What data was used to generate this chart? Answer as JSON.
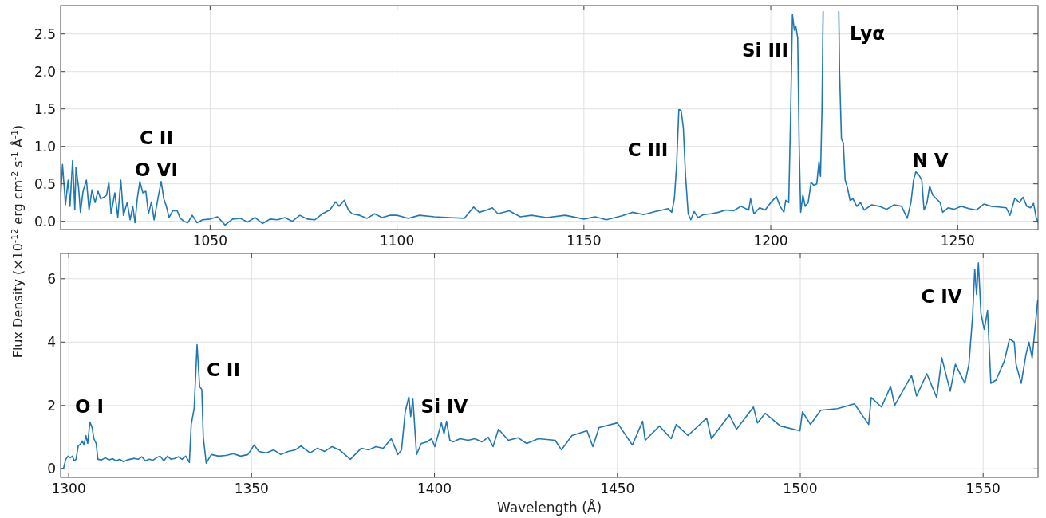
{
  "chart_data": [
    {
      "type": "line",
      "ylabel": "Flux Density (×10$^{-12}$ erg cm$^{-2}$ s$^{-1}$ Å$^{-1}$)",
      "grid": true,
      "xlim": [
        1010,
        1271.5
      ],
      "ylim": [
        -0.11,
        2.88
      ],
      "xticks": [
        1050,
        1100,
        1150,
        1200,
        1250
      ],
      "yticks": [
        {
          "value": 0,
          "label": "0.0"
        },
        {
          "value": 0.5,
          "label": "0.5"
        },
        {
          "value": 1,
          "label": "1.0"
        },
        {
          "value": 1.5,
          "label": "1.5"
        },
        {
          "value": 2,
          "label": "2.0"
        },
        {
          "value": 2.5,
          "label": "2.5"
        }
      ],
      "series": [
        {
          "color": "#1f77b4",
          "x": [
            1010,
            1010.5,
            1011.3,
            1012,
            1012.5,
            1013.2,
            1013.8,
            1014.1,
            1014.8,
            1015.3,
            1016,
            1016.9,
            1017.6,
            1018.4,
            1019.2,
            1020,
            1020.7,
            1021.5,
            1022.3,
            1022.9,
            1023.5,
            1024.5,
            1025.3,
            1026.1,
            1026.8,
            1027.8,
            1028.6,
            1029.3,
            1029.9,
            1030.5,
            1031.2,
            1032,
            1032.8,
            1033.5,
            1034.3,
            1035,
            1036.2,
            1036.9,
            1037.6,
            1038.3,
            1039,
            1040,
            1041.2,
            1042,
            1043,
            1044,
            1045.2,
            1046.5,
            1048,
            1050,
            1052,
            1054,
            1056,
            1058,
            1060,
            1062,
            1064,
            1066,
            1068,
            1070,
            1072,
            1074,
            1076,
            1078,
            1080,
            1082,
            1083.6,
            1084.5,
            1085.9,
            1087,
            1088,
            1090,
            1092,
            1094,
            1096,
            1098,
            1100,
            1103,
            1106,
            1110,
            1114,
            1118,
            1120.5,
            1122,
            1124,
            1125.5,
            1127,
            1130,
            1133,
            1136,
            1140,
            1145,
            1150,
            1153,
            1156,
            1160,
            1163,
            1166,
            1169,
            1171,
            1172.5,
            1173.5,
            1174.2,
            1174.8,
            1175.4,
            1176,
            1176.6,
            1177.2,
            1177.9,
            1178.6,
            1179.5,
            1180.5,
            1182,
            1184,
            1186,
            1188,
            1190,
            1192,
            1194.1,
            1194.6,
            1195.5,
            1197,
            1198.5,
            1200,
            1201.5,
            1202.5,
            1203.5,
            1204,
            1204.8,
            1205.3,
            1205.8,
            1206.3,
            1206.7,
            1207.2,
            1207.6,
            1208,
            1208.6,
            1209.2,
            1210,
            1210.8,
            1211.5,
            1212.3,
            1212.9,
            1213.3,
            1213.7,
            1214
          ],
          "values": [
            0.33,
            0.76,
            0.22,
            0.55,
            0.2,
            0.81,
            0.15,
            0.72,
            0.45,
            0.12,
            0.4,
            0.55,
            0.15,
            0.42,
            0.25,
            0.4,
            0.3,
            0.32,
            0.35,
            0.52,
            0.1,
            0.38,
            0.05,
            0.55,
            0.08,
            0.25,
            0.02,
            0.2,
            -0.02,
            0.3,
            0.53,
            0.38,
            0.4,
            0.1,
            0.26,
            0.02,
            0.35,
            0.53,
            0.3,
            0.2,
            0.05,
            0.14,
            0.14,
            0.04,
            0,
            -0.02,
            0.08,
            -0.02,
            0.02,
            0.03,
            0.06,
            -0.05,
            0.03,
            0.04,
            -0.01,
            0.05,
            -0.03,
            0.03,
            0.02,
            0.05,
            0,
            0.08,
            0.03,
            0.02,
            0.1,
            0.15,
            0.26,
            0.2,
            0.28,
            0.15,
            0.1,
            0.08,
            0.04,
            0.1,
            0.05,
            0.08,
            0.08,
            0.04,
            0.08,
            0.06,
            0.05,
            0.04,
            0.19,
            0.12,
            0.15,
            0.18,
            0.1,
            0.14,
            0.06,
            0.08,
            0.05,
            0.08,
            0.03,
            0.06,
            0.02,
            0.07,
            0.12,
            0.09,
            0.13,
            0.15,
            0.17,
            0.12,
            0.3,
            0.75,
            1.49,
            1.48,
            1.25,
            0.6,
            0.1,
            0.02,
            0.13,
            0.05,
            0.09,
            0.1,
            0.12,
            0.15,
            0.14,
            0.2,
            0.15,
            0.3,
            0.1,
            0.18,
            0.15,
            0.25,
            0.33,
            0.2,
            0.12,
            0.28,
            0.25,
            1.4,
            2.76,
            2.55,
            2.6,
            2.45,
            1,
            0.12,
            0.35,
            0.2,
            0.25,
            0.52,
            0.48,
            0.5,
            0.8,
            0.6,
            1.5,
            2.8
          ]
        },
        {
          "color": "#1f77b4",
          "x": [
            1218.2,
            1218.4,
            1218.9,
            1219.4,
            1219.9,
            1220.5,
            1221.2,
            1222,
            1223,
            1224,
            1225,
            1227,
            1229,
            1231,
            1233,
            1235,
            1236.5,
            1237.5,
            1238.2,
            1238.8,
            1239.6,
            1240.4,
            1241,
            1241.8,
            1242.5,
            1243.3,
            1244.3,
            1245.3,
            1246,
            1247.5,
            1249,
            1251,
            1253,
            1255,
            1257,
            1259,
            1261,
            1263,
            1264,
            1265.3,
            1266.5,
            1267.5,
            1268.5,
            1269.5,
            1270.3,
            1271,
            1271.5
          ],
          "values": [
            2.8,
            2,
            1.1,
            1.05,
            0.55,
            0.45,
            0.28,
            0.3,
            0.2,
            0.25,
            0.15,
            0.22,
            0.2,
            0.16,
            0.22,
            0.2,
            0.04,
            0.25,
            0.55,
            0.66,
            0.62,
            0.55,
            0.15,
            0.25,
            0.47,
            0.35,
            0.3,
            0.25,
            0.12,
            0.18,
            0.16,
            0.2,
            0.17,
            0.15,
            0.23,
            0.2,
            0.19,
            0.18,
            0.08,
            0.31,
            0.25,
            0.32,
            0.2,
            0.18,
            0.24,
            0.05,
            -0.01
          ]
        }
      ],
      "annotations": [
        "C II",
        "O VI",
        "C III",
        "Si III",
        "Lyα",
        "N V"
      ]
    },
    {
      "type": "line",
      "xlabel": "Wavelength (Å)",
      "color": "#1f77b4",
      "grid": true,
      "xlim": [
        1297.8,
        1565
      ],
      "ylim": [
        -0.27,
        6.8
      ],
      "xticks": [
        1300,
        1350,
        1400,
        1450,
        1500,
        1550
      ],
      "yticks": [
        0,
        2,
        4,
        6
      ],
      "x": [
        1297.8,
        1298.6,
        1299.2,
        1299.8,
        1300.4,
        1301,
        1301.5,
        1302,
        1302.6,
        1303.2,
        1303.7,
        1304.2,
        1304.7,
        1305.2,
        1305.8,
        1306.4,
        1306.9,
        1307.5,
        1308,
        1309,
        1310,
        1311,
        1312,
        1313,
        1314,
        1315,
        1316,
        1318,
        1319,
        1320,
        1321,
        1322,
        1323,
        1324,
        1325,
        1326,
        1327,
        1328,
        1329,
        1330,
        1331,
        1332,
        1333,
        1333.5,
        1334.3,
        1335.1,
        1335.8,
        1336.4,
        1336.8,
        1337.6,
        1339,
        1341,
        1343,
        1345,
        1347,
        1349,
        1350.7,
        1352,
        1354,
        1356,
        1358,
        1360,
        1362,
        1363.5,
        1366,
        1368,
        1370,
        1372,
        1374,
        1377,
        1380,
        1382,
        1384,
        1386,
        1388.2,
        1390,
        1391,
        1392,
        1393,
        1393.5,
        1394.1,
        1395.1,
        1396.4,
        1398,
        1399.2,
        1400.1,
        1401.9,
        1402.6,
        1403.3,
        1404.2,
        1405.1,
        1407,
        1409.2,
        1411,
        1413,
        1414.7,
        1416,
        1417.5,
        1420.2,
        1422.9,
        1425.2,
        1428.4,
        1433,
        1434.7,
        1437.6,
        1441.7,
        1443.3,
        1445,
        1450,
        1454.1,
        1456.9,
        1457.6,
        1461.5,
        1464.7,
        1466.1,
        1469.3,
        1474.4,
        1475.7,
        1480.6,
        1482.6,
        1487.2,
        1488.3,
        1490.4,
        1494.6,
        1499.9,
        1500.6,
        1502.8,
        1505.6,
        1510.2,
        1514.8,
        1518.7,
        1519.4,
        1522.2,
        1524.7,
        1525.8,
        1530.4,
        1531.8,
        1534.6,
        1537.3,
        1538.7,
        1541,
        1542.4,
        1545,
        1546.1,
        1547.1,
        1547.7,
        1548.2,
        1548.7,
        1549.4,
        1550.3,
        1551.2,
        1552.1,
        1553.5,
        1555.8,
        1557.2,
        1558.5,
        1559,
        1560.4,
        1561.7,
        1562.5,
        1563.4,
        1564.9
      ],
      "values": [
        0,
        0.02,
        0.3,
        0.4,
        0.35,
        0.4,
        0.25,
        0.3,
        0.72,
        0.78,
        0.88,
        0.75,
        1.05,
        0.8,
        1.48,
        1.3,
        0.95,
        0.8,
        0.3,
        0.28,
        0.35,
        0.28,
        0.32,
        0.25,
        0.3,
        0.22,
        0.28,
        0.33,
        0.3,
        0.38,
        0.25,
        0.3,
        0.27,
        0.35,
        0.4,
        0.25,
        0.4,
        0.3,
        0.33,
        0.38,
        0.3,
        0.4,
        0.2,
        1.4,
        1.9,
        3.92,
        2.6,
        2.5,
        1,
        0.18,
        0.45,
        0.4,
        0.42,
        0.48,
        0.4,
        0.45,
        0.75,
        0.55,
        0.5,
        0.6,
        0.45,
        0.55,
        0.6,
        0.72,
        0.5,
        0.65,
        0.55,
        0.7,
        0.6,
        0.3,
        0.65,
        0.6,
        0.7,
        0.65,
        0.95,
        0.45,
        0.6,
        1.8,
        2.27,
        1.65,
        2.2,
        0.45,
        0.8,
        0.85,
        0.95,
        0.7,
        1.45,
        1.1,
        1.5,
        0.9,
        0.85,
        0.95,
        0.9,
        0.95,
        0.85,
        1,
        0.7,
        1.25,
        0.9,
        0.98,
        0.8,
        0.95,
        0.9,
        0.6,
        1.05,
        1.2,
        0.7,
        1.3,
        1.45,
        0.75,
        1.5,
        0.9,
        1.35,
        0.95,
        1.4,
        1.05,
        1.6,
        0.95,
        1.7,
        1.25,
        1.95,
        1.45,
        1.75,
        1.35,
        1.2,
        1.8,
        1.4,
        1.85,
        1.9,
        2.05,
        1.4,
        2.25,
        1.95,
        2.6,
        2,
        2.95,
        2.3,
        3,
        2.25,
        3.5,
        2.45,
        3.3,
        2.7,
        3.3,
        4.8,
        6.3,
        5.5,
        6.5,
        4.9,
        4.4,
        5,
        2.7,
        2.8,
        3.4,
        4.1,
        4,
        3.3,
        2.7,
        3.6,
        4,
        3.5,
        5.3
      ],
      "annotations": [
        "O I",
        "C II",
        "Si IV",
        "C IV"
      ]
    }
  ]
}
